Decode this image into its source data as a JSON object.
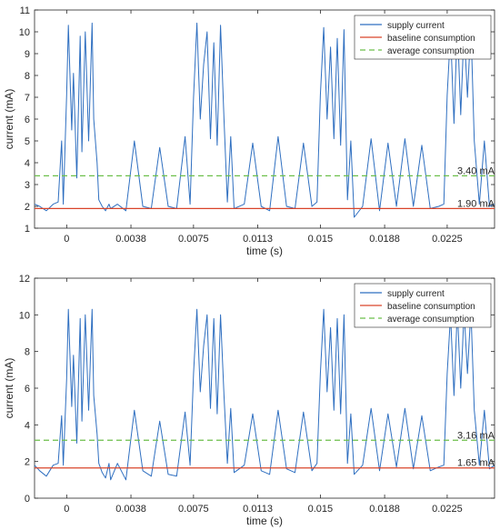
{
  "colors": {
    "supply": "#2f6fc0",
    "baseline": "#d9442a",
    "average": "#6cbf4a",
    "axis": "#262626"
  },
  "chart_data": [
    {
      "type": "line",
      "xlabel": "time (s)",
      "ylabel": "current (mA)",
      "xlim": [
        -0.0019,
        0.0253
      ],
      "ylim": [
        1,
        11
      ],
      "x_ticks": [
        0,
        0.0038,
        0.0075,
        0.0113,
        0.015,
        0.0188,
        0.0225
      ],
      "x_tick_labels": [
        "0",
        "0.0038",
        "0.0075",
        "0.0113",
        "0.015",
        "0.0188",
        "0.0225"
      ],
      "y_ticks": [
        1,
        2,
        3,
        4,
        5,
        6,
        7,
        8,
        9,
        10,
        11
      ],
      "y_tick_labels": [
        "1",
        "2",
        "3",
        "4",
        "5",
        "6",
        "7",
        "8",
        "9",
        "10",
        "11"
      ],
      "legend": [
        "supply current",
        "baseline consumption",
        "average consumption"
      ],
      "legend_position": "top-right",
      "grid": false,
      "baseline_value": 1.9,
      "average_value": 3.4,
      "annotations": [
        "3.40 mA",
        "1.90 mA"
      ],
      "series": [
        {
          "name": "supply current",
          "x": [
            -0.0019,
            -0.0016,
            -0.0012,
            -0.0008,
            -0.0005,
            -0.0003,
            -0.0002,
            0.0,
            0.0001,
            0.0003,
            0.0004,
            0.0006,
            0.0008,
            0.0009,
            0.0011,
            0.0013,
            0.0015,
            0.0016,
            0.0018,
            0.0019,
            0.0021,
            0.0023,
            0.0025,
            0.0026,
            0.003,
            0.0035,
            0.004,
            0.0045,
            0.005,
            0.0055,
            0.006,
            0.0065,
            0.007,
            0.0073,
            0.0075,
            0.0077,
            0.0079,
            0.0081,
            0.0083,
            0.0085,
            0.0087,
            0.0089,
            0.0091,
            0.0093,
            0.0095,
            0.0097,
            0.0099,
            0.0105,
            0.011,
            0.0115,
            0.012,
            0.0125,
            0.013,
            0.0135,
            0.014,
            0.0145,
            0.0148,
            0.015,
            0.0152,
            0.0154,
            0.0156,
            0.0158,
            0.016,
            0.0162,
            0.0164,
            0.0166,
            0.0168,
            0.017,
            0.0175,
            0.018,
            0.0185,
            0.019,
            0.0195,
            0.02,
            0.0205,
            0.021,
            0.0215,
            0.022,
            0.0223,
            0.0225,
            0.0227,
            0.0229,
            0.0231,
            0.0233,
            0.0235,
            0.0237,
            0.0239,
            0.0241,
            0.0244,
            0.0247,
            0.025,
            0.0253
          ],
          "y": [
            2.1,
            2.0,
            1.8,
            2.1,
            2.2,
            5.0,
            2.1,
            7.1,
            10.3,
            5.5,
            8.1,
            3.3,
            9.8,
            4.5,
            10.0,
            5.0,
            10.4,
            6.0,
            4.0,
            2.3,
            2.0,
            1.8,
            2.1,
            1.9,
            2.1,
            1.8,
            5.0,
            2.0,
            1.9,
            4.7,
            2.0,
            1.9,
            5.2,
            2.1,
            7.0,
            10.4,
            6.0,
            8.5,
            10.0,
            5.1,
            9.5,
            4.8,
            10.3,
            6.0,
            2.2,
            5.2,
            1.9,
            2.1,
            4.9,
            2.0,
            1.8,
            5.2,
            2.0,
            1.9,
            4.9,
            2.0,
            2.2,
            7.1,
            10.2,
            6.0,
            9.3,
            5.1,
            9.7,
            4.8,
            10.1,
            2.3,
            5.0,
            1.5,
            2.0,
            5.1,
            1.8,
            4.9,
            2.0,
            5.1,
            2.0,
            4.8,
            1.9,
            2.0,
            2.1,
            7.1,
            10.0,
            5.8,
            10.4,
            6.2,
            10.2,
            7.0,
            10.3,
            5.0,
            2.1,
            5.0,
            2.0,
            2.1
          ]
        }
      ]
    },
    {
      "type": "line",
      "xlabel": "time (s)",
      "ylabel": "current (mA)",
      "xlim": [
        -0.0019,
        0.0253
      ],
      "ylim": [
        0,
        12
      ],
      "x_ticks": [
        0,
        0.0038,
        0.0075,
        0.0113,
        0.015,
        0.0188,
        0.0225
      ],
      "x_tick_labels": [
        "0",
        "0.0038",
        "0.0075",
        "0.0113",
        "0.015",
        "0.0188",
        "0.0225"
      ],
      "y_ticks": [
        0,
        2,
        4,
        6,
        8,
        10,
        12
      ],
      "y_tick_labels": [
        "0",
        "2",
        "4",
        "6",
        "8",
        "10",
        "12"
      ],
      "legend": [
        "supply current",
        "baseline consumption",
        "average consumption"
      ],
      "legend_position": "top-right",
      "grid": false,
      "baseline_value": 1.65,
      "average_value": 3.16,
      "annotations": [
        "3.16 mA",
        "1.65 mA"
      ],
      "series": [
        {
          "name": "supply current",
          "x": [
            -0.0019,
            -0.0016,
            -0.0012,
            -0.0008,
            -0.0005,
            -0.0003,
            -0.0002,
            0.0,
            0.0001,
            0.0003,
            0.0004,
            0.0006,
            0.0008,
            0.0009,
            0.0011,
            0.0013,
            0.0015,
            0.0016,
            0.0018,
            0.0019,
            0.0021,
            0.0023,
            0.0025,
            0.0026,
            0.003,
            0.0035,
            0.004,
            0.0045,
            0.005,
            0.0055,
            0.006,
            0.0065,
            0.007,
            0.0073,
            0.0075,
            0.0077,
            0.0079,
            0.0081,
            0.0083,
            0.0085,
            0.0087,
            0.0089,
            0.0091,
            0.0093,
            0.0095,
            0.0097,
            0.0099,
            0.0105,
            0.011,
            0.0115,
            0.012,
            0.0125,
            0.013,
            0.0135,
            0.014,
            0.0145,
            0.0148,
            0.015,
            0.0152,
            0.0154,
            0.0156,
            0.0158,
            0.016,
            0.0162,
            0.0164,
            0.0166,
            0.0168,
            0.017,
            0.0175,
            0.018,
            0.0185,
            0.019,
            0.0195,
            0.02,
            0.0205,
            0.021,
            0.0215,
            0.022,
            0.0223,
            0.0225,
            0.0227,
            0.0229,
            0.0231,
            0.0233,
            0.0235,
            0.0237,
            0.0239,
            0.0241,
            0.0244,
            0.0247,
            0.025,
            0.0253
          ],
          "y": [
            1.8,
            1.5,
            1.2,
            1.8,
            1.9,
            4.5,
            1.8,
            6.5,
            10.3,
            5.0,
            7.8,
            3.0,
            9.8,
            4.2,
            10.0,
            4.8,
            10.3,
            5.6,
            3.5,
            1.9,
            1.4,
            1.1,
            1.9,
            1.0,
            1.9,
            1.0,
            4.8,
            1.5,
            1.2,
            4.2,
            1.3,
            1.2,
            4.7,
            1.8,
            6.8,
            10.3,
            5.8,
            8.3,
            10.0,
            4.9,
            9.8,
            4.6,
            10.0,
            5.6,
            1.9,
            4.9,
            1.4,
            1.8,
            4.6,
            1.5,
            1.3,
            4.8,
            1.6,
            1.4,
            4.7,
            1.5,
            1.9,
            6.8,
            10.3,
            5.8,
            9.3,
            4.8,
            9.8,
            4.6,
            10.0,
            1.9,
            4.6,
            1.3,
            1.8,
            4.9,
            1.5,
            4.6,
            1.7,
            4.9,
            1.6,
            4.5,
            1.5,
            1.7,
            1.8,
            6.8,
            10.0,
            5.6,
            10.3,
            6.0,
            10.2,
            6.8,
            10.3,
            4.8,
            1.8,
            4.8,
            1.6,
            1.8
          ]
        }
      ]
    }
  ]
}
